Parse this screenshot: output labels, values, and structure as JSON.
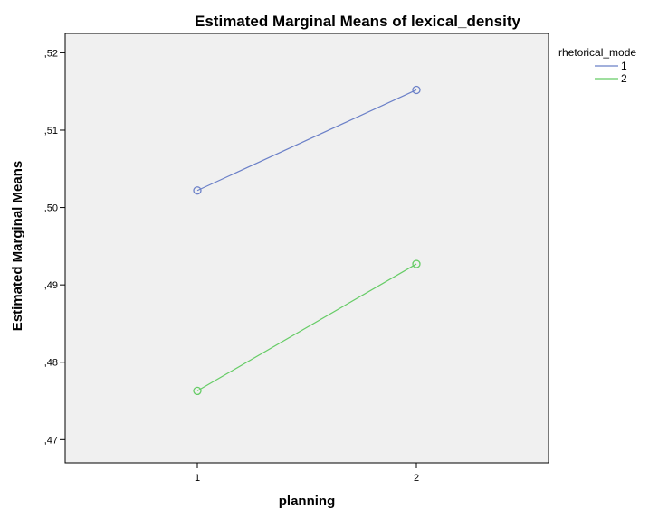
{
  "chart_data": {
    "type": "line",
    "title": "Estimated Marginal Means of lexical_density",
    "xlabel": "planning",
    "ylabel": "Estimated Marginal Means",
    "x": [
      1,
      2
    ],
    "x_tick_labels": [
      "1",
      "2"
    ],
    "ylim": [
      0.467,
      0.5225
    ],
    "y_ticks": [
      0.47,
      0.48,
      0.49,
      0.5,
      0.51,
      0.52
    ],
    "y_tick_labels": [
      ",47",
      ",48",
      ",49",
      ",50",
      ",51",
      ",52"
    ],
    "legend_title": "rhetorical_mode",
    "legend_position": "top-right",
    "grid": false,
    "series": [
      {
        "name": "1",
        "values": [
          0.5022,
          0.5152
        ],
        "color": "#6b80c8"
      },
      {
        "name": "2",
        "values": [
          0.4763,
          0.4927
        ],
        "color": "#66cc66"
      }
    ],
    "plot_background": "#f0f0f0"
  }
}
